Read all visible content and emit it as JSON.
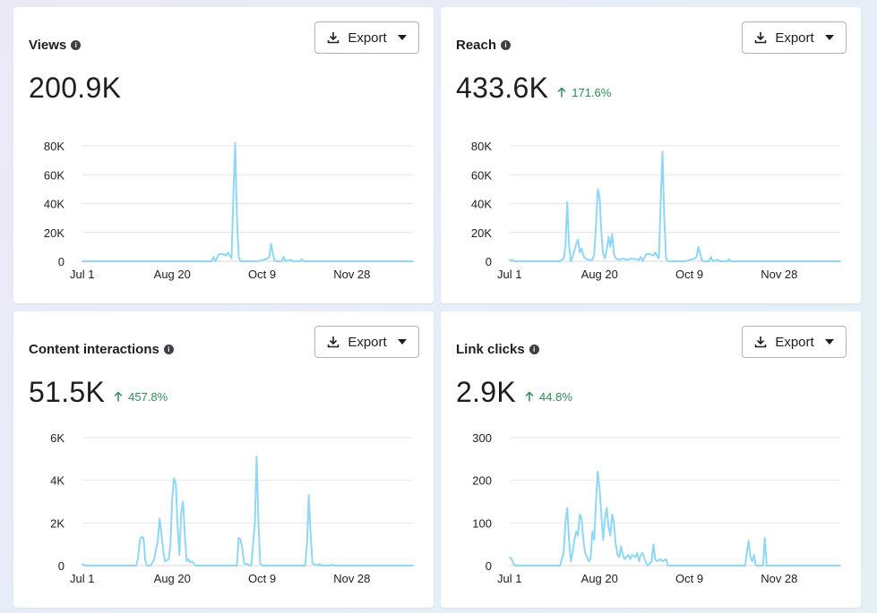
{
  "accent_color": "#8fd8f5",
  "cards": [
    {
      "title": "Views",
      "value": "200.9K",
      "change": "",
      "export_label": "Export",
      "chart_data": {
        "type": "line",
        "ylim": [
          0,
          80000
        ],
        "yticks": [
          "0",
          "20K",
          "40K",
          "60K",
          "80K"
        ],
        "ytick_values": [
          0,
          20000,
          40000,
          60000,
          80000
        ],
        "xticks": [
          "Jul 1",
          "Aug 20",
          "Oct 9",
          "Nov 28"
        ],
        "xtick_days": [
          0,
          50,
          100,
          150
        ],
        "days": 184,
        "points": [
          [
            0,
            0
          ],
          [
            60,
            0
          ],
          [
            72,
            0
          ],
          [
            73,
            3000
          ],
          [
            74,
            0
          ],
          [
            76,
            5000
          ],
          [
            78,
            5000
          ],
          [
            80,
            4000
          ],
          [
            81,
            6000
          ],
          [
            83,
            2000
          ],
          [
            84,
            45000
          ],
          [
            85,
            82000
          ],
          [
            86,
            30000
          ],
          [
            87,
            3000
          ],
          [
            88,
            0
          ],
          [
            98,
            0
          ],
          [
            99,
            500
          ],
          [
            102,
            1500
          ],
          [
            103,
            2000
          ],
          [
            104,
            3000
          ],
          [
            105,
            12000
          ],
          [
            106,
            5000
          ],
          [
            107,
            500
          ],
          [
            108,
            0
          ],
          [
            111,
            0
          ],
          [
            112,
            3000
          ],
          [
            113,
            0
          ],
          [
            116,
            1000
          ],
          [
            117,
            0
          ],
          [
            121,
            0
          ],
          [
            122,
            1500
          ],
          [
            123,
            0
          ],
          [
            184,
            0
          ]
        ]
      }
    },
    {
      "title": "Reach",
      "value": "433.6K",
      "change": "171.6%",
      "export_label": "Export",
      "chart_data": {
        "type": "line",
        "ylim": [
          0,
          80000
        ],
        "yticks": [
          "0",
          "20K",
          "40K",
          "60K",
          "80K"
        ],
        "ytick_values": [
          0,
          20000,
          40000,
          60000,
          80000
        ],
        "xticks": [
          "Jul 1",
          "Aug 20",
          "Oct 9",
          "Nov 28"
        ],
        "xtick_days": [
          0,
          50,
          100,
          150
        ],
        "days": 184,
        "points": [
          [
            0,
            1000
          ],
          [
            2,
            500
          ],
          [
            3,
            0
          ],
          [
            28,
            0
          ],
          [
            30,
            2000
          ],
          [
            31,
            10000
          ],
          [
            32,
            41000
          ],
          [
            33,
            12000
          ],
          [
            34,
            0
          ],
          [
            35,
            3000
          ],
          [
            37,
            12000
          ],
          [
            38,
            15000
          ],
          [
            39,
            6000
          ],
          [
            40,
            9000
          ],
          [
            41,
            4000
          ],
          [
            42,
            2000
          ],
          [
            44,
            1000
          ],
          [
            46,
            1000
          ],
          [
            47,
            5000
          ],
          [
            48,
            25000
          ],
          [
            49,
            50000
          ],
          [
            50,
            45000
          ],
          [
            51,
            20000
          ],
          [
            52,
            5000
          ],
          [
            53,
            2000
          ],
          [
            54,
            8000
          ],
          [
            55,
            17000
          ],
          [
            56,
            10000
          ],
          [
            57,
            19000
          ],
          [
            58,
            5000
          ],
          [
            59,
            2000
          ],
          [
            61,
            1000
          ],
          [
            63,
            2000
          ],
          [
            65,
            1000
          ],
          [
            68,
            2000
          ],
          [
            72,
            1000
          ],
          [
            73,
            3000
          ],
          [
            74,
            0
          ],
          [
            76,
            5000
          ],
          [
            78,
            5000
          ],
          [
            80,
            4000
          ],
          [
            81,
            6000
          ],
          [
            83,
            2000
          ],
          [
            84,
            40000
          ],
          [
            85,
            76000
          ],
          [
            86,
            30000
          ],
          [
            87,
            2000
          ],
          [
            88,
            0
          ],
          [
            98,
            0
          ],
          [
            99,
            500
          ],
          [
            102,
            1500
          ],
          [
            103,
            2000
          ],
          [
            104,
            3000
          ],
          [
            105,
            10000
          ],
          [
            106,
            5000
          ],
          [
            107,
            500
          ],
          [
            108,
            0
          ],
          [
            111,
            0
          ],
          [
            112,
            3000
          ],
          [
            113,
            0
          ],
          [
            116,
            1000
          ],
          [
            117,
            0
          ],
          [
            121,
            0
          ],
          [
            122,
            1500
          ],
          [
            123,
            0
          ],
          [
            184,
            0
          ]
        ]
      }
    },
    {
      "title": "Content interactions",
      "value": "51.5K",
      "change": "457.8%",
      "export_label": "Export",
      "chart_data": {
        "type": "line",
        "ylim": [
          0,
          6000
        ],
        "yticks": [
          "0",
          "2K",
          "4K",
          "6K"
        ],
        "ytick_values": [
          0,
          2000,
          4000,
          6000
        ],
        "xticks": [
          "Jul 1",
          "Aug 20",
          "Oct 9",
          "Nov 28"
        ],
        "xtick_days": [
          0,
          50,
          100,
          150
        ],
        "days": 184,
        "points": [
          [
            0,
            50
          ],
          [
            2,
            0
          ],
          [
            30,
            0
          ],
          [
            31,
            400
          ],
          [
            32,
            1200
          ],
          [
            33,
            1350
          ],
          [
            34,
            1300
          ],
          [
            35,
            200
          ],
          [
            36,
            0
          ],
          [
            38,
            0
          ],
          [
            40,
            300
          ],
          [
            42,
            1200
          ],
          [
            43,
            2200
          ],
          [
            44,
            1500
          ],
          [
            45,
            700
          ],
          [
            46,
            200
          ],
          [
            48,
            300
          ],
          [
            49,
            1000
          ],
          [
            50,
            3200
          ],
          [
            51,
            4100
          ],
          [
            52,
            3800
          ],
          [
            53,
            1800
          ],
          [
            54,
            500
          ],
          [
            55,
            2500
          ],
          [
            56,
            3000
          ],
          [
            57,
            1500
          ],
          [
            58,
            200
          ],
          [
            59,
            300
          ],
          [
            60,
            150
          ],
          [
            61,
            200
          ],
          [
            62,
            100
          ],
          [
            63,
            0
          ],
          [
            86,
            0
          ],
          [
            87,
            1300
          ],
          [
            88,
            1200
          ],
          [
            89,
            800
          ],
          [
            90,
            100
          ],
          [
            94,
            0
          ],
          [
            96,
            2000
          ],
          [
            97,
            5100
          ],
          [
            98,
            2000
          ],
          [
            99,
            100
          ],
          [
            100,
            0
          ],
          [
            124,
            0
          ],
          [
            125,
            1000
          ],
          [
            126,
            3300
          ],
          [
            127,
            1500
          ],
          [
            128,
            100
          ],
          [
            131,
            0
          ],
          [
            132,
            80
          ],
          [
            133,
            0
          ],
          [
            138,
            0
          ],
          [
            139,
            50
          ],
          [
            140,
            0
          ],
          [
            184,
            0
          ]
        ]
      }
    },
    {
      "title": "Link clicks",
      "value": "2.9K",
      "change": "44.8%",
      "export_label": "Export",
      "chart_data": {
        "type": "line",
        "ylim": [
          0,
          300
        ],
        "yticks": [
          "0",
          "100",
          "200",
          "300"
        ],
        "ytick_values": [
          0,
          100,
          200,
          300
        ],
        "xticks": [
          "Jul 1",
          "Aug 20",
          "Oct 9",
          "Nov 28"
        ],
        "xtick_days": [
          0,
          50,
          100,
          150
        ],
        "days": 184,
        "points": [
          [
            0,
            18
          ],
          [
            1,
            17
          ],
          [
            2,
            5
          ],
          [
            3,
            0
          ],
          [
            28,
            0
          ],
          [
            30,
            30
          ],
          [
            31,
            100
          ],
          [
            32,
            135
          ],
          [
            33,
            60
          ],
          [
            34,
            10
          ],
          [
            35,
            30
          ],
          [
            36,
            60
          ],
          [
            37,
            80
          ],
          [
            38,
            70
          ],
          [
            39,
            120
          ],
          [
            40,
            110
          ],
          [
            41,
            60
          ],
          [
            42,
            30
          ],
          [
            44,
            10
          ],
          [
            45,
            15
          ],
          [
            46,
            80
          ],
          [
            47,
            60
          ],
          [
            48,
            150
          ],
          [
            49,
            220
          ],
          [
            50,
            180
          ],
          [
            51,
            120
          ],
          [
            52,
            60
          ],
          [
            53,
            110
          ],
          [
            54,
            135
          ],
          [
            55,
            90
          ],
          [
            56,
            70
          ],
          [
            57,
            120
          ],
          [
            58,
            100
          ],
          [
            59,
            50
          ],
          [
            60,
            25
          ],
          [
            61,
            20
          ],
          [
            62,
            45
          ],
          [
            63,
            25
          ],
          [
            64,
            15
          ],
          [
            66,
            25
          ],
          [
            67,
            15
          ],
          [
            68,
            25
          ],
          [
            70,
            20
          ],
          [
            71,
            30
          ],
          [
            72,
            10
          ],
          [
            73,
            25
          ],
          [
            74,
            30
          ],
          [
            76,
            5
          ],
          [
            77,
            0
          ],
          [
            79,
            10
          ],
          [
            80,
            50
          ],
          [
            81,
            15
          ],
          [
            82,
            10
          ],
          [
            84,
            15
          ],
          [
            85,
            10
          ],
          [
            87,
            15
          ],
          [
            88,
            0
          ],
          [
            131,
            0
          ],
          [
            132,
            30
          ],
          [
            133,
            58
          ],
          [
            134,
            20
          ],
          [
            135,
            10
          ],
          [
            136,
            25
          ],
          [
            137,
            0
          ],
          [
            141,
            0
          ],
          [
            142,
            65
          ],
          [
            143,
            0
          ],
          [
            184,
            0
          ]
        ]
      }
    }
  ]
}
